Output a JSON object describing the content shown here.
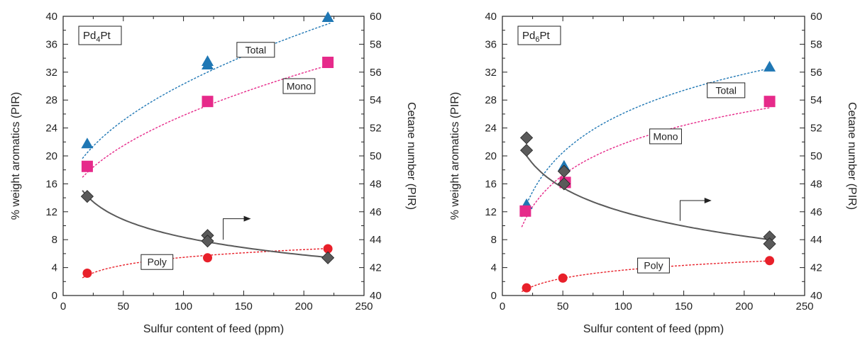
{
  "chart_data": [
    {
      "type": "scatter",
      "panel_label": {
        "base": "Pd",
        "sub1": "4",
        "mid": "Pt"
      },
      "xlabel": "Sulfur content of feed (ppm)",
      "ylabel": "% weight aromatics (PIR)",
      "y2label": "Cetane number (PIR)",
      "xlim": [
        0,
        250
      ],
      "ylim": [
        0,
        40
      ],
      "y2lim": [
        40,
        60
      ],
      "x_ticks": [
        "0",
        "50",
        "100",
        "150",
        "200",
        "250"
      ],
      "y_ticks": [
        "0",
        "4",
        "8",
        "12",
        "16",
        "20",
        "24",
        "28",
        "32",
        "36",
        "40"
      ],
      "y2_ticks": [
        "40",
        "42",
        "44",
        "46",
        "48",
        "50",
        "52",
        "54",
        "56",
        "58",
        "60"
      ],
      "series": [
        {
          "name": "Total",
          "axis": "left",
          "color": "#1f77b4",
          "marker": "triangle",
          "points": [
            [
              20,
              21.7
            ],
            [
              120,
              33.0
            ],
            [
              120,
              33.5
            ],
            [
              220,
              39.8
            ]
          ],
          "fit": {
            "form": "a+b*sqrt(x)",
            "a": 12.5,
            "b": 1.78,
            "x_from": 16,
            "x_to": 222
          }
        },
        {
          "name": "Mono",
          "axis": "left",
          "color": "#e62a8a",
          "marker": "square",
          "points": [
            [
              20,
              18.5
            ],
            [
              120,
              27.8
            ],
            [
              220,
              33.4
            ]
          ],
          "fit": {
            "form": "a+b*sqrt(x)",
            "a": 11.0,
            "b": 1.48,
            "x_from": 16,
            "x_to": 222
          }
        },
        {
          "name": "Poly",
          "axis": "left",
          "color": "#e8202a",
          "marker": "circle",
          "points": [
            [
              20,
              3.2
            ],
            [
              120,
              5.4
            ],
            [
              220,
              6.7
            ]
          ],
          "fit": {
            "form": "a+b*ln(x)",
            "a": -1.9,
            "b": 1.6,
            "x_from": 16,
            "x_to": 222
          }
        },
        {
          "name": "",
          "axis": "right",
          "color": "#5a5a5a",
          "marker": "diamond",
          "points": [
            [
              20,
              47.1
            ],
            [
              120,
              44.3
            ],
            [
              120,
              43.9
            ],
            [
              220,
              42.7
            ]
          ],
          "fit": {
            "form": "a+b*ln(x)",
            "a": 52.6,
            "b": -1.83,
            "x_from": 16,
            "x_to": 222
          }
        }
      ],
      "labels": [
        {
          "text": "Total",
          "x": 160,
          "y": 35.2
        },
        {
          "text": "Mono",
          "x": 196,
          "y": 30.0
        },
        {
          "text": "Poly",
          "x": 78,
          "y": 4.8
        }
      ],
      "arrow": {
        "x0": 133,
        "y0": 8.0,
        "x1": 133,
        "y1": 11.0,
        "x2": 156,
        "y2": 11.0
      }
    },
    {
      "type": "scatter",
      "panel_label": {
        "base": "Pd",
        "sub1": "6",
        "mid": "Pt"
      },
      "xlabel": "Sulfur content of feed (ppm)",
      "ylabel": "% weight aromatics (PIR)",
      "y2label": "Cetane number (PIR)",
      "xlim": [
        0,
        250
      ],
      "ylim": [
        0,
        40
      ],
      "y2lim": [
        40,
        60
      ],
      "x_ticks": [
        "0",
        "50",
        "100",
        "150",
        "200",
        "250"
      ],
      "y_ticks": [
        "0",
        "4",
        "8",
        "12",
        "16",
        "20",
        "24",
        "28",
        "32",
        "36",
        "40"
      ],
      "y2_ticks": [
        "40",
        "42",
        "44",
        "46",
        "48",
        "50",
        "52",
        "54",
        "56",
        "58",
        "60"
      ],
      "series": [
        {
          "name": "Total",
          "axis": "left",
          "color": "#1f77b4",
          "marker": "triangle",
          "points": [
            [
              20,
              13.0
            ],
            [
              51,
              18.5
            ],
            [
              221,
              32.7
            ]
          ],
          "fit": {
            "form": "a+b*ln(x)",
            "a": -11.2,
            "b": 8.1,
            "x_from": 16,
            "x_to": 222
          }
        },
        {
          "name": "Mono",
          "axis": "left",
          "color": "#e62a8a",
          "marker": "square",
          "points": [
            [
              19,
              12.1
            ],
            [
              52,
              16.2
            ],
            [
              221,
              27.8
            ]
          ],
          "fit": {
            "form": "a+b*ln(x)",
            "a": -8.2,
            "b": 6.5,
            "x_from": 16,
            "x_to": 222
          }
        },
        {
          "name": "Poly",
          "axis": "left",
          "color": "#e8202a",
          "marker": "circle",
          "points": [
            [
              20,
              1.1
            ],
            [
              50,
              2.5
            ],
            [
              221,
              5.0
            ]
          ],
          "fit": {
            "form": "a+b*ln(x)",
            "a": -4.1,
            "b": 1.68,
            "x_from": 16,
            "x_to": 222
          }
        },
        {
          "name": "",
          "axis": "right",
          "color": "#5a5a5a",
          "marker": "diamond",
          "points": [
            [
              20,
              51.3
            ],
            [
              20,
              50.4
            ],
            [
              51,
              48.9
            ],
            [
              51,
              48.0
            ],
            [
              221,
              44.2
            ],
            [
              221,
              43.7
            ]
          ],
          "fit": {
            "form": "a+b*ln(x)",
            "a": 57.5,
            "b": -2.5,
            "x_from": 19,
            "x_to": 222
          }
        }
      ],
      "labels": [
        {
          "text": "Total",
          "x": 185,
          "y": 29.4
        },
        {
          "text": "Mono",
          "x": 135,
          "y": 22.8
        },
        {
          "text": "Poly",
          "x": 125,
          "y": 4.3
        }
      ],
      "arrow": {
        "x0": 147,
        "y0": 10.7,
        "x1": 147,
        "y1": 13.6,
        "x2": 173,
        "y2": 13.6
      }
    }
  ]
}
